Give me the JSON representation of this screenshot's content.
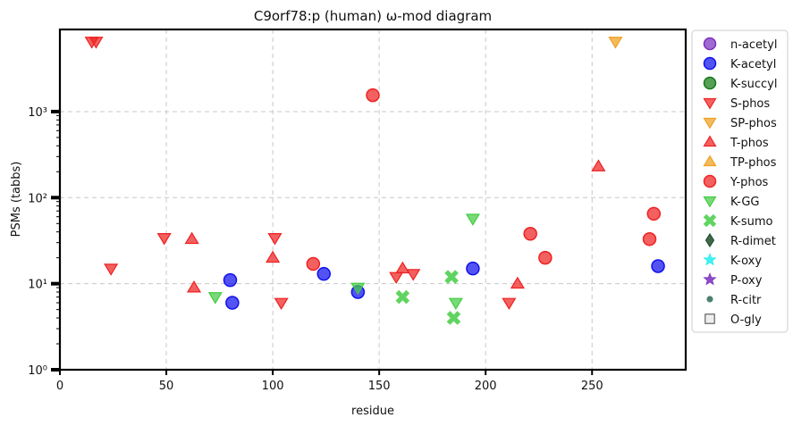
{
  "chart_data": {
    "type": "scatter",
    "title": "C9orf78:p (human) ω-mod diagram",
    "xlabel": "residue",
    "ylabel": "PSMs (tabbs)",
    "xlim": [
      0,
      294
    ],
    "ylim": [
      1,
      9000
    ],
    "yscale": "log",
    "x_ticks": [
      0,
      50,
      100,
      150,
      200,
      250
    ],
    "x_tick_labels": [
      "0",
      "50",
      "100",
      "150",
      "200",
      "250"
    ],
    "y_ticks": [
      1,
      10,
      100,
      1000
    ],
    "y_tick_labels": [
      "10⁰",
      "10¹",
      "10²",
      "10³"
    ],
    "grid": true,
    "legend_position": "outside-right",
    "series": [
      {
        "name": "n-acetyl",
        "marker": "circle",
        "color": "#7b2fbf",
        "points": []
      },
      {
        "name": "K-acetyl",
        "marker": "circle",
        "color": "#1010ee",
        "points": [
          [
            80,
            11
          ],
          [
            81,
            6
          ],
          [
            124,
            13
          ],
          [
            140,
            8
          ],
          [
            194,
            15
          ],
          [
            281,
            16
          ]
        ]
      },
      {
        "name": "K-succyl",
        "marker": "circle",
        "color": "#157a15",
        "points": []
      },
      {
        "name": "S-phos",
        "marker": "triangle-down",
        "color": "#ee2222",
        "points": [
          [
            15,
            6500
          ],
          [
            17,
            6500
          ],
          [
            24,
            15
          ],
          [
            49,
            34
          ],
          [
            101,
            34
          ],
          [
            104,
            6
          ],
          [
            158,
            12
          ],
          [
            166,
            13
          ],
          [
            211,
            6
          ]
        ]
      },
      {
        "name": "SP-phos",
        "marker": "triangle-down",
        "color": "#f0a020",
        "points": [
          [
            261,
            6500
          ]
        ]
      },
      {
        "name": "T-phos",
        "marker": "triangle-up",
        "color": "#ee2222",
        "points": [
          [
            62,
            33
          ],
          [
            63,
            9
          ],
          [
            100,
            20
          ],
          [
            161,
            15
          ],
          [
            215,
            10
          ],
          [
            253,
            230
          ]
        ]
      },
      {
        "name": "TP-phos",
        "marker": "triangle-up",
        "color": "#f0a020",
        "points": []
      },
      {
        "name": "Y-phos",
        "marker": "circle",
        "color": "#ee2222",
        "points": [
          [
            119,
            17
          ],
          [
            147,
            1550
          ],
          [
            221,
            38
          ],
          [
            228,
            20
          ],
          [
            277,
            33
          ],
          [
            279,
            65
          ]
        ]
      },
      {
        "name": "K-GG",
        "marker": "triangle-down",
        "color": "#44cc44",
        "points": [
          [
            73,
            7
          ],
          [
            140,
            9
          ],
          [
            186,
            6
          ],
          [
            194,
            57
          ]
        ]
      },
      {
        "name": "K-sumo",
        "marker": "x",
        "color": "#44cc44",
        "points": [
          [
            161,
            7
          ],
          [
            184,
            12
          ],
          [
            185,
            4
          ]
        ]
      },
      {
        "name": "R-dimet",
        "marker": "diamond",
        "color": "#1e4d2b",
        "points": []
      },
      {
        "name": "K-oxy",
        "marker": "star",
        "color": "#22eeee",
        "points": []
      },
      {
        "name": "P-oxy",
        "marker": "star",
        "color": "#7b2fbf",
        "points": []
      },
      {
        "name": "R-citr",
        "marker": "small-circle",
        "color": "#2e6b55",
        "points": []
      },
      {
        "name": "O-gly",
        "marker": "square",
        "color": "#eeeeee",
        "points": []
      }
    ]
  }
}
